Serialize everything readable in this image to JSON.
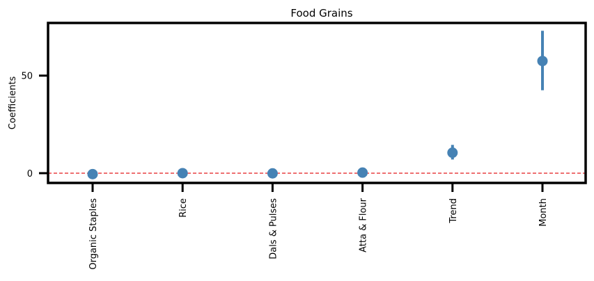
{
  "chart_data": {
    "type": "scatter",
    "title": "Food Grains",
    "xlabel": "",
    "ylabel": "Coefficients",
    "categories": [
      "Organic Staples",
      "Rice",
      "Dals & Pulses",
      "Atta & Flour",
      "Trend",
      "Month"
    ],
    "series": [
      {
        "values": [
          -0.5,
          0.0,
          -0.1,
          0.3,
          10.5,
          57.5
        ],
        "ci_lower": [
          -1.5,
          -1.0,
          -1.1,
          -0.7,
          7.0,
          42.5
        ],
        "ci_upper": [
          0.5,
          1.0,
          0.9,
          1.3,
          14.5,
          73.0
        ]
      }
    ],
    "ylim": [
      -5,
      77
    ],
    "yticks": [
      0,
      50
    ],
    "reference_line": {
      "y": 0,
      "style": "dashed",
      "color": "#e41a1c"
    },
    "grid": false,
    "marker_color": "#4682b4"
  }
}
